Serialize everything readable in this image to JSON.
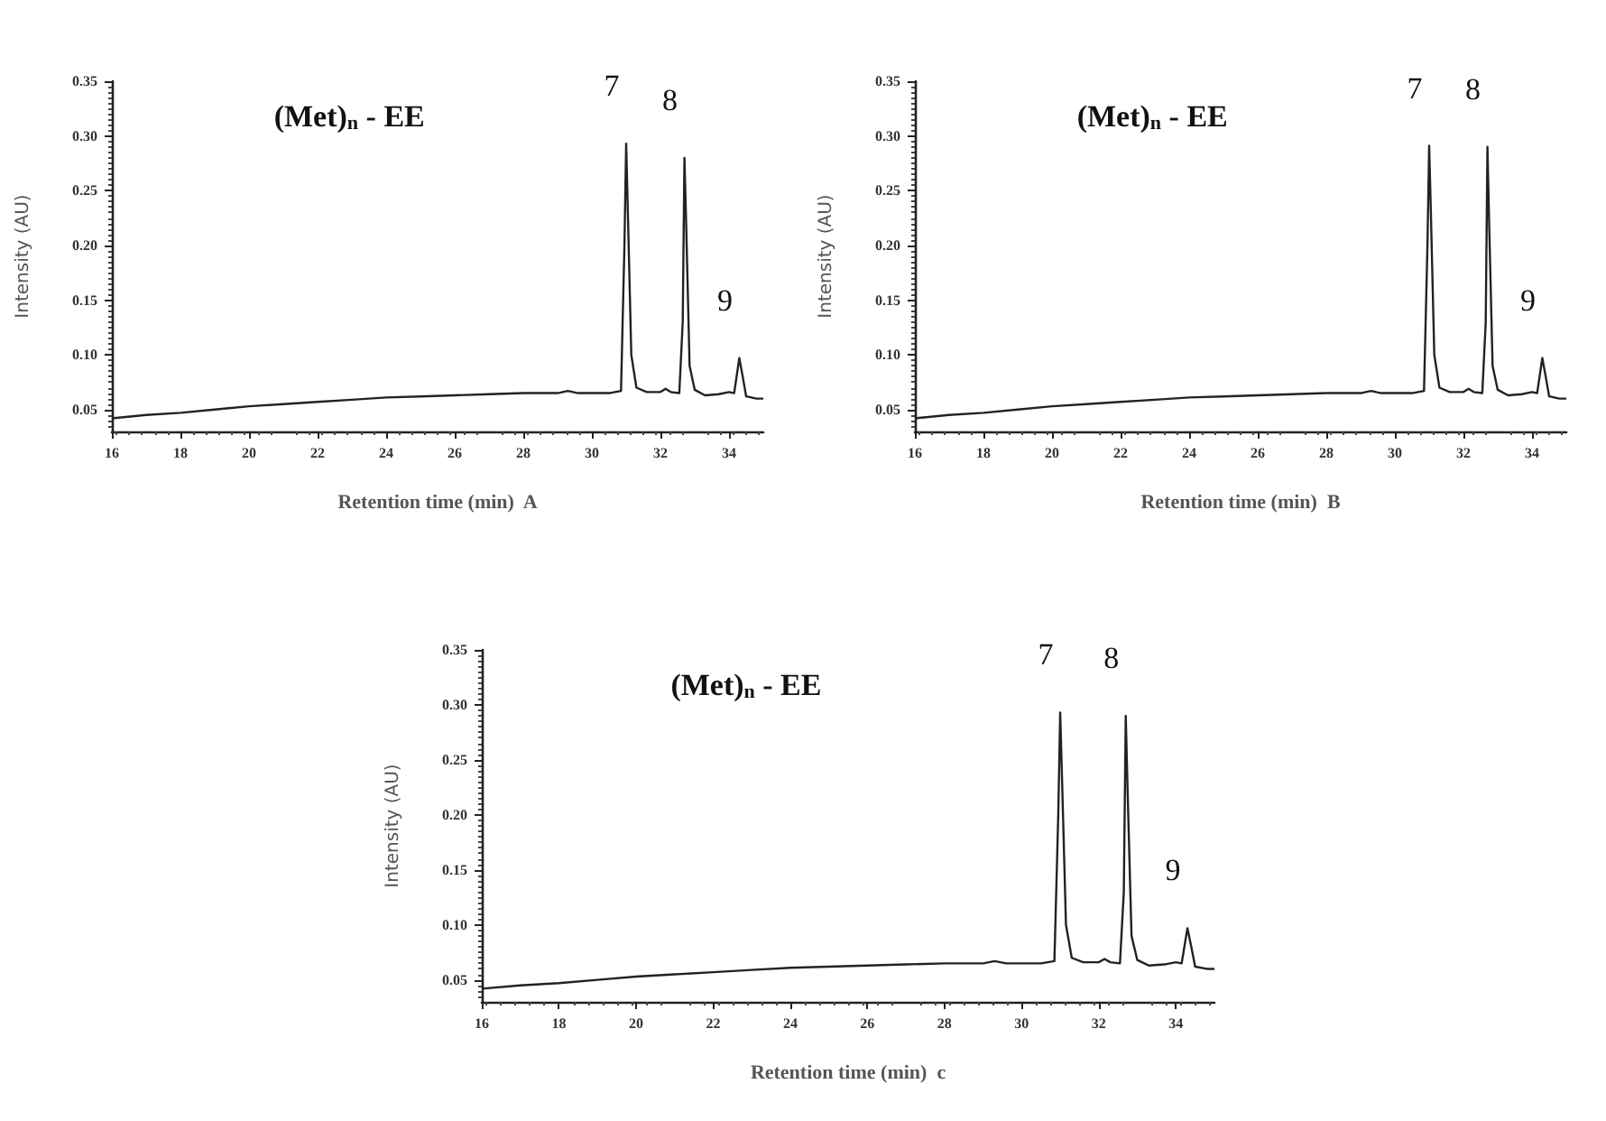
{
  "chart_data": [
    {
      "type": "line",
      "title": "(Met)$_{n}$ - EE",
      "xlabel": "Retention time (min)  A",
      "ylabel": "Intensity (AU)",
      "color": "#222222",
      "marker": "none",
      "grid": false,
      "xlim": [
        16,
        35
      ],
      "ylim": [
        0.03,
        0.35
      ],
      "xticks": [
        16,
        18,
        20,
        22,
        24,
        26,
        28,
        30,
        32,
        34
      ],
      "yticks": [
        0.05,
        {
          "value": 0.1,
          "label": "0.10"
        },
        0.15,
        {
          "value": 0.2,
          "label": "0.20"
        },
        0.25,
        {
          "value": 0.3,
          "label": "0.30"
        },
        0.35
      ],
      "x": [
        16,
        17,
        18,
        19,
        20,
        21,
        22,
        23,
        24,
        25,
        26,
        27,
        28,
        29,
        29.3,
        29.6,
        30,
        30.5,
        30.85,
        30.95,
        31.0,
        31.05,
        31.15,
        31.3,
        31.6,
        32.0,
        32.15,
        32.3,
        32.55,
        32.65,
        32.7,
        32.75,
        32.85,
        33.0,
        33.3,
        33.7,
        34.0,
        34.15,
        34.3,
        34.4,
        34.5,
        34.8,
        35
      ],
      "values": [
        0.042,
        0.045,
        0.047,
        0.05,
        0.053,
        0.055,
        0.057,
        0.059,
        0.061,
        0.062,
        0.063,
        0.064,
        0.065,
        0.065,
        0.067,
        0.065,
        0.065,
        0.065,
        0.067,
        0.2,
        0.293,
        0.23,
        0.1,
        0.07,
        0.066,
        0.066,
        0.069,
        0.066,
        0.065,
        0.13,
        0.28,
        0.22,
        0.09,
        0.068,
        0.063,
        0.064,
        0.066,
        0.065,
        0.097,
        0.08,
        0.062,
        0.06,
        0.06
      ],
      "annotations": [
        {
          "text": "7",
          "x": 31.0,
          "y": 0.293
        },
        {
          "text": "8",
          "x": 32.7,
          "y": 0.28
        },
        {
          "text": "9",
          "x": 34.3,
          "y": 0.097
        }
      ]
    },
    {
      "type": "line",
      "title": "(Met)$_{n}$ - EE",
      "xlabel": "Retention time (min)  B",
      "ylabel": "Intensity (AU)",
      "color": "#222222",
      "marker": "none",
      "grid": false,
      "xlim": [
        16,
        35
      ],
      "ylim": [
        0.03,
        0.35
      ],
      "xticks": [
        16,
        18,
        20,
        22,
        24,
        26,
        28,
        30,
        32,
        34
      ],
      "yticks": [
        0.05,
        {
          "value": 0.1,
          "label": "0.10"
        },
        0.15,
        {
          "value": 0.2,
          "label": "0.20"
        },
        0.25,
        {
          "value": 0.3,
          "label": "0.30"
        },
        0.35
      ],
      "x": [
        16,
        17,
        18,
        19,
        20,
        21,
        22,
        23,
        24,
        25,
        26,
        27,
        28,
        29,
        29.3,
        29.6,
        30,
        30.5,
        30.85,
        30.95,
        31.0,
        31.05,
        31.15,
        31.3,
        31.6,
        32.0,
        32.15,
        32.3,
        32.55,
        32.65,
        32.7,
        32.75,
        32.85,
        33.0,
        33.3,
        33.7,
        34.0,
        34.15,
        34.3,
        34.4,
        34.5,
        34.8,
        35
      ],
      "values": [
        0.042,
        0.045,
        0.047,
        0.05,
        0.053,
        0.055,
        0.057,
        0.059,
        0.061,
        0.062,
        0.063,
        0.064,
        0.065,
        0.065,
        0.067,
        0.065,
        0.065,
        0.065,
        0.067,
        0.2,
        0.291,
        0.23,
        0.1,
        0.07,
        0.066,
        0.066,
        0.069,
        0.066,
        0.065,
        0.13,
        0.29,
        0.22,
        0.09,
        0.068,
        0.063,
        0.064,
        0.066,
        0.065,
        0.097,
        0.08,
        0.062,
        0.06,
        0.06
      ],
      "annotations": [
        {
          "text": "7",
          "x": 31.0,
          "y": 0.291
        },
        {
          "text": "8",
          "x": 32.7,
          "y": 0.29
        },
        {
          "text": "9",
          "x": 34.3,
          "y": 0.097
        }
      ]
    },
    {
      "type": "line",
      "title": "(Met)$_{n}$ - EE",
      "xlabel": "Retention time (min)  c",
      "ylabel": "Intensity (AU)",
      "color": "#222222",
      "marker": "none",
      "grid": false,
      "xlim": [
        16,
        35
      ],
      "ylim": [
        0.03,
        0.35
      ],
      "xticks": [
        16,
        18,
        20,
        22,
        24,
        26,
        28,
        30,
        32,
        34
      ],
      "yticks": [
        0.05,
        {
          "value": 0.1,
          "label": "0.10"
        },
        0.15,
        {
          "value": 0.2,
          "label": "0.20"
        },
        0.25,
        {
          "value": 0.3,
          "label": "0.30"
        },
        0.35
      ],
      "x": [
        16,
        17,
        18,
        19,
        20,
        21,
        22,
        23,
        24,
        25,
        26,
        27,
        28,
        29,
        29.3,
        29.6,
        30,
        30.5,
        30.85,
        30.95,
        31.0,
        31.05,
        31.15,
        31.3,
        31.6,
        32.0,
        32.15,
        32.3,
        32.55,
        32.65,
        32.7,
        32.75,
        32.85,
        33.0,
        33.3,
        33.7,
        34.0,
        34.15,
        34.3,
        34.4,
        34.5,
        34.8,
        35
      ],
      "values": [
        0.042,
        0.045,
        0.047,
        0.05,
        0.053,
        0.055,
        0.057,
        0.059,
        0.061,
        0.062,
        0.063,
        0.064,
        0.065,
        0.065,
        0.067,
        0.065,
        0.065,
        0.065,
        0.067,
        0.2,
        0.293,
        0.23,
        0.1,
        0.07,
        0.066,
        0.066,
        0.069,
        0.066,
        0.065,
        0.13,
        0.29,
        0.22,
        0.09,
        0.068,
        0.063,
        0.064,
        0.066,
        0.065,
        0.097,
        0.08,
        0.062,
        0.06,
        0.06
      ],
      "annotations": [
        {
          "text": "7",
          "x": 31.0,
          "y": 0.293
        },
        {
          "text": "8",
          "x": 32.7,
          "y": 0.29
        },
        {
          "text": "9",
          "x": 34.3,
          "y": 0.097
        }
      ]
    }
  ]
}
